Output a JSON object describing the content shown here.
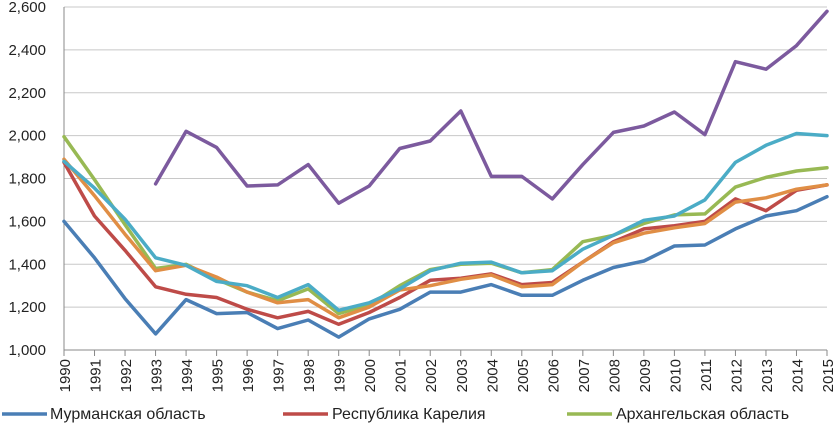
{
  "chart_data": {
    "type": "line",
    "title": "",
    "xlabel": "",
    "ylabel": "",
    "ylim": [
      1000,
      2600
    ],
    "yticks": [
      1000,
      1200,
      1400,
      1600,
      1800,
      2000,
      2200,
      2400,
      2600
    ],
    "ytick_labels": [
      "1,000",
      "1,200",
      "1,400",
      "1,600",
      "1,800",
      "2,000",
      "2,200",
      "2,400",
      "2,600"
    ],
    "categories": [
      "1990",
      "1991",
      "1992",
      "1993",
      "1994",
      "1995",
      "1996",
      "1997",
      "1998",
      "1999",
      "2000",
      "2001",
      "2002",
      "2003",
      "2004",
      "2005",
      "2006",
      "2007",
      "2008",
      "2009",
      "2010",
      "2011",
      "2012",
      "2013",
      "2014",
      "2015"
    ],
    "grid": "horizontal",
    "legend_position": "bottom",
    "series": [
      {
        "name": "Мурманская область",
        "color": "#4a7eb5",
        "in_legend": true,
        "values": [
          1600,
          1430,
          1240,
          1075,
          1235,
          1170,
          1175,
          1100,
          1140,
          1060,
          1145,
          1190,
          1270,
          1270,
          1305,
          1255,
          1255,
          1325,
          1385,
          1415,
          1485,
          1490,
          1565,
          1625,
          1650,
          1715
        ]
      },
      {
        "name": "Республика Карелия",
        "color": "#be4b48",
        "in_legend": true,
        "values": [
          1875,
          1625,
          1465,
          1295,
          1260,
          1245,
          1190,
          1150,
          1180,
          1120,
          1175,
          1245,
          1325,
          1335,
          1355,
          1305,
          1315,
          1410,
          1505,
          1565,
          1580,
          1600,
          1705,
          1650,
          1745,
          1770
        ]
      },
      {
        "name": "Архангельская область",
        "color": "#98b954",
        "in_legend": true,
        "values": [
          1995,
          1795,
          1585,
          1380,
          1400,
          1330,
          1270,
          1230,
          1285,
          1170,
          1210,
          1300,
          1375,
          1400,
          1405,
          1360,
          1375,
          1505,
          1535,
          1590,
          1630,
          1635,
          1760,
          1805,
          1835,
          1850
        ]
      },
      {
        "name": "",
        "color": "#e08e45",
        "in_legend": false,
        "values": [
          1890,
          1720,
          1540,
          1370,
          1395,
          1340,
          1270,
          1220,
          1235,
          1150,
          1200,
          1280,
          1300,
          1330,
          1350,
          1295,
          1305,
          1410,
          1500,
          1545,
          1570,
          1590,
          1690,
          1710,
          1750,
          1770
        ]
      },
      {
        "name": "",
        "color": "#4bacc6",
        "in_legend": false,
        "values": [
          1880,
          1755,
          1610,
          1430,
          1395,
          1320,
          1300,
          1245,
          1305,
          1185,
          1220,
          1285,
          1370,
          1405,
          1410,
          1360,
          1370,
          1470,
          1535,
          1605,
          1625,
          1700,
          1875,
          1955,
          2010,
          2000
        ]
      },
      {
        "name": "",
        "color": "#7c5a9e",
        "in_legend": false,
        "start_index": 3,
        "values": [
          null,
          null,
          null,
          1775,
          2020,
          1945,
          1765,
          1770,
          1865,
          1685,
          1765,
          1940,
          1975,
          2115,
          1810,
          1810,
          1705,
          1865,
          2015,
          2045,
          2110,
          2005,
          2345,
          2310,
          2420,
          2580
        ]
      }
    ]
  }
}
